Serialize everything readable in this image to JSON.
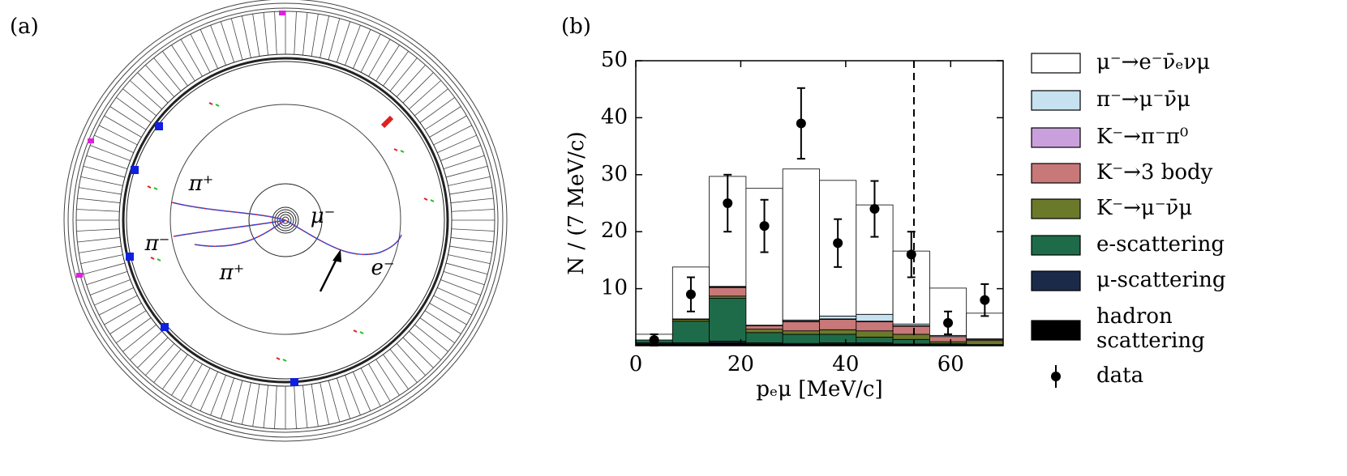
{
  "panels": [
    "(a)",
    "(b)"
  ],
  "event_display": {
    "labels": [
      "π⁺",
      "π⁻",
      "π⁺",
      "μ⁻",
      "e⁻"
    ]
  },
  "chart_data": {
    "type": "histogram",
    "xlabel": "pₑμ [MeV/c]",
    "ylabel": "N / (7 MeV/c)",
    "bins": [
      0,
      7,
      14,
      21,
      28,
      35,
      42,
      49,
      56,
      63,
      70
    ],
    "xlim": [
      0,
      70
    ],
    "xticks": [
      0,
      20,
      40,
      60
    ],
    "ylim": [
      0,
      50
    ],
    "yticks": [
      10,
      20,
      30,
      40,
      50
    ],
    "vline": 53,
    "series": [
      {
        "name": "μ⁻→e⁻ν̄ₑνμ",
        "color": "#ffffff",
        "values": [
          1.0,
          9.1,
          19.3,
          24.0,
          26.5,
          23.8,
          19.2,
          12.8,
          8.3,
          4.5
        ]
      },
      {
        "name": "π⁻→μ⁻ν̄μ",
        "color": "#c6e2f0",
        "values": [
          0,
          0,
          0.1,
          0.1,
          0.2,
          0.5,
          1.2,
          0.3,
          0.2,
          0.1
        ]
      },
      {
        "name": "K⁻→π⁻π⁰",
        "color": "#c9a0dc",
        "values": [
          0,
          0,
          0.1,
          0,
          0.1,
          0.1,
          0.1,
          0.1,
          0,
          0
        ]
      },
      {
        "name": "K⁻→3 body",
        "color": "#c87878",
        "values": [
          0,
          0.1,
          1.5,
          0.6,
          1.6,
          1.8,
          1.6,
          1.4,
          0.9,
          0.2
        ]
      },
      {
        "name": "K⁻→μ⁻ν̄μ",
        "color": "#6b7a2a",
        "values": [
          0,
          0.3,
          0.4,
          0.6,
          0.6,
          0.8,
          1.1,
          0.9,
          0.3,
          0.7
        ]
      },
      {
        "name": "e-scattering",
        "color": "#1e6b4a",
        "values": [
          0.5,
          3.8,
          7.5,
          1.8,
          1.6,
          1.5,
          1.0,
          0.8,
          0.2,
          0.1
        ]
      },
      {
        "name": "μ-scattering",
        "color": "#1c2a4a",
        "values": [
          0.2,
          0.2,
          0.3,
          0.2,
          0.2,
          0.2,
          0.2,
          0.1,
          0.1,
          0
        ]
      },
      {
        "name": "hadron scattering",
        "color": "#000000",
        "values": [
          0.3,
          0.3,
          0.5,
          0.3,
          0.2,
          0.3,
          0.3,
          0.2,
          0.1,
          0.1
        ]
      }
    ],
    "data": {
      "name": "data",
      "color": "#000000",
      "values": [
        1,
        9,
        25,
        21,
        39,
        18,
        24,
        16,
        4,
        8
      ],
      "errors": [
        1,
        3,
        5,
        4.6,
        6.2,
        4.2,
        4.9,
        4,
        2,
        2.8
      ]
    }
  }
}
